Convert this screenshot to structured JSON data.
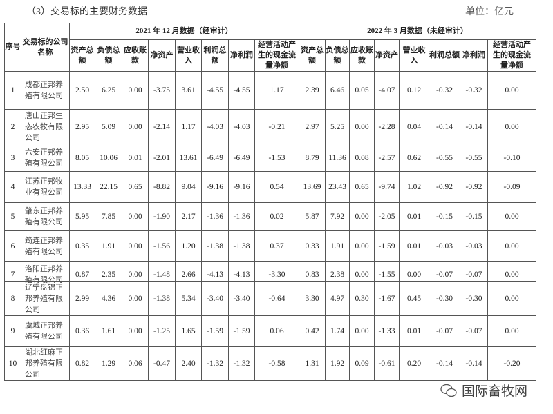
{
  "caption": "（3）交易标的主要财务数据",
  "unit": "单位：亿元",
  "headers": {
    "seq": "序号",
    "name": "交易标的公司名称",
    "period_2021": "2021 年 12 月数据（经审计）",
    "period_2022": "2022 年 3 月数据（未经审计）",
    "columns": [
      "资产总额",
      "负债总额",
      "应收账款",
      "净资产",
      "营业收入",
      "利润总额",
      "净利润",
      "经营活动产生的现金流量净额"
    ]
  },
  "rows": [
    {
      "seq": "1",
      "name": "成都正邦养殖有限公司",
      "y2021": [
        "2.50",
        "6.25",
        "0.00",
        "-3.75",
        "3.61",
        "-4.55",
        "-4.55",
        "1.17"
      ],
      "y2022": [
        "2.39",
        "6.46",
        "0.05",
        "-4.07",
        "0.12",
        "-0.32",
        "-0.32",
        "0.00"
      ]
    },
    {
      "seq": "2",
      "name": "唐山正邦生态农牧有限公司",
      "y2021": [
        "2.95",
        "5.09",
        "0.00",
        "-2.14",
        "1.17",
        "-4.03",
        "-4.03",
        "-0.21"
      ],
      "y2022": [
        "2.97",
        "5.25",
        "0.00",
        "-2.28",
        "0.04",
        "-0.14",
        "-0.14",
        "0.00"
      ]
    },
    {
      "seq": "3",
      "name": "六安正邦养殖有限公司",
      "y2021": [
        "8.05",
        "10.06",
        "0.01",
        "-2.01",
        "13.61",
        "-6.49",
        "-6.49",
        "-1.53"
      ],
      "y2022": [
        "8.79",
        "11.36",
        "0.08",
        "-2.57",
        "0.62",
        "-0.55",
        "-0.55",
        "-0.10"
      ]
    },
    {
      "seq": "4",
      "name": "江苏正邦牧业有限公司",
      "y2021": [
        "13.33",
        "22.15",
        "0.65",
        "-8.82",
        "9.04",
        "-9.16",
        "-9.16",
        "0.54"
      ],
      "y2022": [
        "13.69",
        "23.43",
        "0.65",
        "-9.74",
        "1.02",
        "-0.92",
        "-0.92",
        "-0.09"
      ]
    },
    {
      "seq": "5",
      "name": "肇东正邦养殖有限公司",
      "y2021": [
        "5.95",
        "7.85",
        "0.00",
        "-1.90",
        "2.17",
        "-1.36",
        "-1.36",
        "0.02"
      ],
      "y2022": [
        "5.87",
        "7.92",
        "0.00",
        "-2.05",
        "0.01",
        "-0.15",
        "-0.15",
        "0.00"
      ]
    },
    {
      "seq": "6",
      "name": "筠连正邦养殖有限公司",
      "y2021": [
        "0.35",
        "1.91",
        "0.00",
        "-1.56",
        "1.20",
        "-1.38",
        "-1.38",
        "0.37"
      ],
      "y2022": [
        "0.33",
        "1.91",
        "0.00",
        "-1.59",
        "0.01",
        "-0.03",
        "-0.03",
        "0.00"
      ]
    },
    {
      "seq": "7",
      "name": "洛阳正邦养殖有限公司",
      "y2021": [
        "0.87",
        "2.35",
        "0.00",
        "-1.48",
        "2.66",
        "-4.13",
        "-4.13",
        "-3.30"
      ],
      "y2022": [
        "0.83",
        "2.38",
        "0.00",
        "-1.55",
        "0.00",
        "-0.07",
        "-0.07",
        "0.00"
      ]
    },
    {
      "seq": "8",
      "name": "辽宁盘锦正邦养殖有限公司",
      "y2021": [
        "2.99",
        "4.36",
        "0.00",
        "-1.38",
        "5.34",
        "-3.40",
        "-3.40",
        "-0.64"
      ],
      "y2022": [
        "3.30",
        "4.97",
        "0.30",
        "-1.67",
        "0.45",
        "-0.30",
        "-0.30",
        "0.00"
      ]
    },
    {
      "seq": "9",
      "name": "虞城正邦养殖有限公司",
      "y2021": [
        "0.36",
        "1.61",
        "0.00",
        "-1.25",
        "1.65",
        "-1.59",
        "-1.59",
        "0.06"
      ],
      "y2022": [
        "0.42",
        "1.74",
        "0.00",
        "-1.33",
        "0.01",
        "-0.07",
        "-0.07",
        "0.00"
      ]
    },
    {
      "seq": "10",
      "name": "湖北红麻正邦养殖有限公司",
      "y2021": [
        "0.82",
        "1.29",
        "0.06",
        "-0.47",
        "2.40",
        "-1.32",
        "-1.32",
        "-0.58"
      ],
      "y2022": [
        "1.31",
        "1.92",
        "0.09",
        "-0.61",
        "0.20",
        "-0.14",
        "-0.14",
        "-0.20"
      ]
    }
  ],
  "watermark": {
    "text": "国际畜牧网",
    "icon": "wechat-icon"
  }
}
